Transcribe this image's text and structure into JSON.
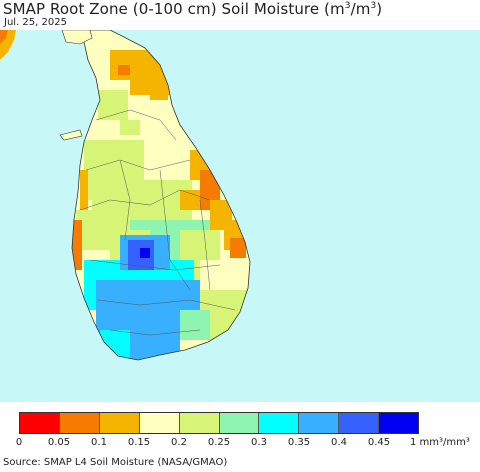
{
  "title": "SMAP Root Zone (0-100 cm) Soil Moisture (m",
  "title_sup1": "3",
  "title_mid": "/m",
  "title_sup2": "3",
  "title_end": ")",
  "date": "Jul. 25, 2025",
  "legend": {
    "colors": [
      "#ff0000",
      "#f77b00",
      "#f5b400",
      "#ffffc0",
      "#d6f576",
      "#8ef5b0",
      "#00ffff",
      "#38b0ff",
      "#3562ff",
      "#0000f2"
    ],
    "ticks": [
      "0",
      "0.05",
      "0.1",
      "0.15",
      "0.2",
      "0.25",
      "0.3",
      "0.35",
      "0.4",
      "0.45"
    ],
    "unit_label": "1 mm³/mm³"
  },
  "source": "Source: SMAP L4 Soil Moisture (NASA/GMAO)",
  "map": {
    "ocean_color": "#c8f7f7",
    "land_color": "#ffffc0",
    "boundary_color": "#333333"
  }
}
